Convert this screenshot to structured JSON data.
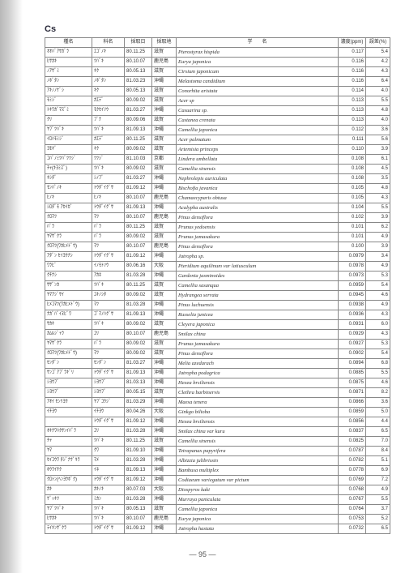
{
  "element_symbol": "Cs",
  "page_number": "— 95 —",
  "headers": [
    "種名",
    "科名",
    "採取日",
    "採取地",
    "学　　名",
    "濃度(ppm)",
    "誤差(%)"
  ],
  "rows": [
    [
      "ｵｵﾊﾞｱｻｶﾞﾗ",
      "ｴｺﾞﾉｷ",
      "80.11.25",
      "滋賀",
      "Pterostyrax hispida",
      "0.117",
      "5.4"
    ],
    [
      "ﾋｻｶｷ",
      "ﾂﾊﾞｷ",
      "80.10.07",
      "鹿児島",
      "Eurya japonica",
      "0.116",
      "4.2"
    ],
    [
      "ﾉｱｻﾞﾐ",
      "ｷｸ",
      "80.05.13",
      "滋賀",
      "Cirsium japonicum",
      "0.116",
      "4.3"
    ],
    [
      "ﾉﾎﾞﾀﾝ",
      "ﾉﾎﾞﾀﾝ",
      "81.03.23",
      "沖縄",
      "Melastoma candidium",
      "0.116",
      "6.4"
    ],
    [
      "ｱｷﾉﾉｹﾞｼ",
      "ｷｸ",
      "80.05.13",
      "滋賀",
      "Conorhita aristata",
      "0.114",
      "4.0"
    ],
    [
      "ﾓﾐｼﾞ",
      "ｶｴﾃﾞ",
      "80.09.02",
      "滋賀",
      "Acer sp",
      "0.113",
      "5.5"
    ],
    [
      "ﾄｷﾜｶﾞﾏｽﾞﾐ",
      "ﾓｸｾｲｿｳ",
      "81.03.27",
      "沖縄",
      "Casuarina sp.",
      "0.113",
      "4.8"
    ],
    [
      "ｸﾘ",
      "ﾌﾞﾅ",
      "80.09.06",
      "滋賀",
      "Castanea crenata",
      "0.113",
      "4.0"
    ],
    [
      "ﾔﾌﾞﾂﾊﾞｷ",
      "ﾂﾊﾞｷ",
      "81.09.13",
      "沖縄",
      "Camellia japonica",
      "0.112",
      "3.6"
    ],
    [
      "ｲﾛﾊﾓﾐｼﾞ",
      "ｶｴﾃﾞ",
      "80.11.25",
      "滋賀",
      "Acer palmatum",
      "0.111",
      "5.6"
    ],
    [
      "ﾖﾓｷﾞ",
      "ｷｸ",
      "80.09.02",
      "滋賀",
      "Artemisia princeps",
      "0.110",
      "3.9"
    ],
    [
      "ｺﾊﾞﾉﾐﾂﾊﾞﾂﾂｼﾞ",
      "ﾂﾂｼﾞ",
      "81.10.03",
      "京都",
      "Lindera umbellata",
      "0.108",
      "6.1"
    ],
    [
      "ﾁｬ(ｷﾖﾐｽﾞ)",
      "ﾂﾊﾞｷ",
      "80.09.02",
      "滋賀",
      "Camellia sinensis",
      "0.108",
      "4.5"
    ],
    [
      "ｷｼﾀﾞ",
      "ｼﾉﾌﾞ",
      "81.03.27",
      "沖縄",
      "Nephrolepis auriculata",
      "0.108",
      "3.5"
    ],
    [
      "ﾓﾝﾊﾟﾉｷ",
      "ﾄｳﾀﾞｲｸﾞｻ",
      "81.09.12",
      "沖縄",
      "Bischofia javanica",
      "0.105",
      "4.8"
    ],
    [
      "ﾋﾉｷ",
      "ﾋﾉｷ",
      "80.10.07",
      "鹿児島",
      "Chamaecyparis obtusa",
      "0.105",
      "4.3"
    ],
    [
      "ｼﾛﾀﾞﾓ ｱｶｲｶﾞ",
      "ﾄｳﾀﾞｲｸﾞｻ",
      "81.09.13",
      "沖縄",
      "Acalypha australis",
      "0.104",
      "5.5"
    ],
    [
      "ｸﾛﾏﾂ",
      "ﾏﾂ",
      "80.10.07",
      "鹿児島",
      "Pinus densiflora",
      "0.102",
      "3.9"
    ],
    [
      "ﾊﾞﾗ",
      "ﾊﾞﾗ",
      "80.11.25",
      "滋賀",
      "Prunus yedoensis",
      "0.101",
      "6.2"
    ],
    [
      "ﾔﾏｻﾞｸﾗ",
      "ﾊﾞﾗ",
      "80.09.02",
      "滋賀",
      "Prunus jamasakura",
      "0.101",
      "4.9"
    ],
    [
      "ｸﾛﾏﾂ(ﾜｶﾋﾒﾄﾞｳ)",
      "ﾏﾂ",
      "80.10.07",
      "鹿児島",
      "Pinus densiflora",
      "0.100",
      "3.9"
    ],
    [
      "ｱﾀﾞﾝ ｾｲﾖｳﾅｼ",
      "ﾄｳﾀﾞｲｸﾞｻ",
      "81.09.12",
      "沖縄",
      "Jatropha sp.",
      "0.0979",
      "3.4"
    ],
    [
      "ﾜﾗﾋﾞ",
      "ｲﾉﾓﾄｿｳ",
      "80.06.16",
      "大阪",
      "Pteridium aquilinum var latiusculum",
      "0.0978",
      "4.9"
    ],
    [
      "ｸﾁﾅｼ",
      "ｱｶﾈ",
      "81.03.28",
      "沖縄",
      "Gardenia jasminoides",
      "0.0973",
      "5.3"
    ],
    [
      "ｻｻﾞﾝｶ",
      "ﾂﾊﾞｷ",
      "80.11.25",
      "滋賀",
      "Camellia sasanqua",
      "0.0959",
      "5.4"
    ],
    [
      "ﾔﾏｱｼﾞｻｲ",
      "ﾕｷﾉｼﾀ",
      "80.09.02",
      "滋賀",
      "Hydrangea serrata",
      "0.0945",
      "4.6"
    ],
    [
      "ﾋﾒｺﾏﾂ(ﾜｶﾋﾒﾄﾞｳ)",
      "ﾏﾂ",
      "81.03.28",
      "沖縄",
      "Pinus luchuensis",
      "0.0938",
      "4.9"
    ],
    [
      "ﾅｶﾞﾊﾞｲﾇﾋﾞﾜ",
      "ｺﾞﾏﾉﾊｸﾞｻ",
      "81.09.13",
      "沖縄",
      "Russelia junicea",
      "0.0936",
      "4.3"
    ],
    [
      "ｻｶｷ",
      "ﾂﾊﾞｷ",
      "80.09.02",
      "滋賀",
      "Cleyera japonica",
      "0.0931",
      "6.0"
    ],
    [
      "ｶﾑﾙｼﾞｬﾗ",
      "ﾕﾘ",
      "80.10.07",
      "鹿児島",
      "Smilax china",
      "0.0929",
      "4.3"
    ],
    [
      "ﾔﾏｻﾞｸﾗ",
      "ﾊﾞﾗ",
      "80.09.02",
      "滋賀",
      "Prunus jamasakura",
      "0.0927",
      "5.3"
    ],
    [
      "ｸﾛﾏﾂ(ﾜｶﾋﾒﾄﾞｳ)",
      "ﾏﾂ",
      "80.09.02",
      "滋賀",
      "Pinus densiflora",
      "0.0902",
      "5.4"
    ],
    [
      "ｾﾝﾀﾞﾝ",
      "ｾﾝﾀﾞﾝ",
      "81.03.27",
      "沖縄",
      "Melia azedarach",
      "0.0894",
      "6.8"
    ],
    [
      "ｻﾝｺﾞｱﾌﾞﾗｷﾞﾘ",
      "ﾄｳﾀﾞｲｸﾞｻ",
      "81.09.13",
      "沖縄",
      "Jatropha podagrica",
      "0.0885",
      "5.5"
    ],
    [
      "ｼﾖｳﾌﾞ",
      "ｼﾖｳﾌﾞ",
      "81.03.13",
      "沖縄",
      "Hexea brsiliensis",
      "0.0875",
      "4.6"
    ],
    [
      "ｼﾖｳﾌﾞ",
      "ｼﾖｳﾌﾞ",
      "80.05.15",
      "滋賀",
      "Clethra barbinervis",
      "0.0871",
      "8.2"
    ],
    [
      "ｱｵｲ ｾﾝﾘﾖｳ",
      "ﾔﾌﾞｺｳｼﾞ",
      "81.03.29",
      "沖縄",
      "Maesa tenera",
      "0.0866",
      "3.6"
    ],
    [
      "ｲﾁﾖｳ",
      "ｲﾁﾖｳ",
      "80.04.26",
      "大阪",
      "Ginkgo bilioba",
      "0.0859",
      "5.0"
    ],
    [
      "",
      "ﾄｳﾀﾞｲｸﾞｻ",
      "81.09.12",
      "沖縄",
      "Hexea brsiliensis",
      "0.0856",
      "4.4"
    ],
    [
      "ｵｷﾅﾜﾊｸｻﾝｲﾊﾞﾗ",
      "ﾕﾘ",
      "81.03.28",
      "沖縄",
      "Smilax china var kuru",
      "0.0837",
      "6.5"
    ],
    [
      "ﾁｬ",
      "ﾂﾊﾞｷ",
      "80.11.25",
      "滋賀",
      "Camellia sinensis",
      "0.0825",
      "7.0"
    ],
    [
      "ﾔﾏ",
      "ｸﾜ",
      "81.09.10",
      "沖縄",
      "Tetrapanax papyrifera",
      "0.0787",
      "8.4"
    ],
    [
      "ｾｲｺｳﾜ ﾀｼﾞﾅｳﾞｷﾗ",
      "ﾏﾒ",
      "81.03.28",
      "沖縄",
      "Albizzia julibrissin",
      "0.0782",
      "5.1"
    ],
    [
      "ﾎｳﾗｲﾁｸ",
      "ｲﾈ",
      "81.09.13",
      "沖縄",
      "Bambusa multiplex",
      "0.0778",
      "6.9"
    ],
    [
      "ｸﾛﾄﾝ(ﾍﾝﾖｳﾎﾞｸ)",
      "ﾄｳﾀﾞｲｸﾞｻ",
      "81.09.12",
      "沖縄",
      "Codiaeum variegatum var pictum",
      "0.0769",
      "7.2"
    ],
    [
      "ｶｷ",
      "ｶｷﾉｷ",
      "80.07.03",
      "大阪",
      "Diospyros kaki",
      "0.0768",
      "4.9"
    ],
    [
      "ｹﾞｯｷﾂ",
      "ﾐｶﾝ",
      "81.03.28",
      "沖縄",
      "Murraya paniculata",
      "0.0767",
      "5.5"
    ],
    [
      "ﾔﾌﾞﾂﾊﾞｷ",
      "ﾂﾊﾞｷ",
      "80.05.13",
      "滋賀",
      "Camellia japonica",
      "0.0764",
      "3.7"
    ],
    [
      "ﾋｻｶｷ",
      "ﾂﾊﾞｷ",
      "80.10.07",
      "鹿児島",
      "Eurya japonica",
      "0.0753",
      "5.2"
    ],
    [
      "ﾃｲｷﾝｻﾞｸﾗ",
      "ﾄｳﾀﾞｲｸﾞｻ",
      "81.09.12",
      "沖縄",
      "Jatropha hastata",
      "0.0732",
      "6.5"
    ]
  ]
}
